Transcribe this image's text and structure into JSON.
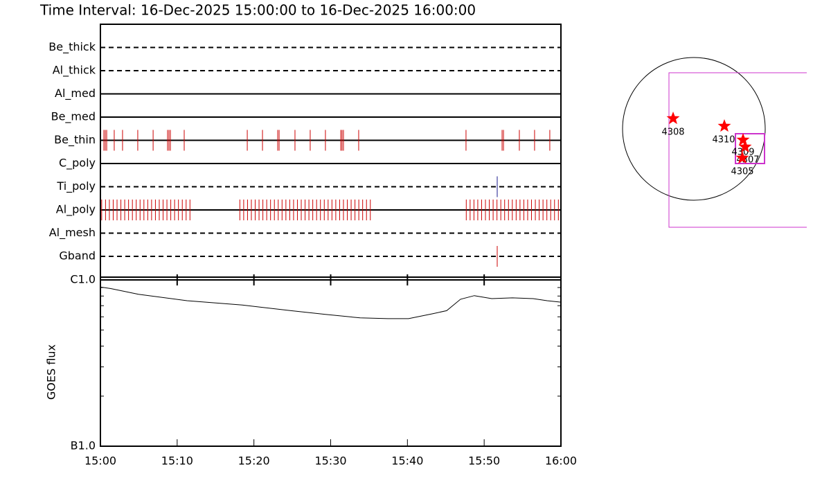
{
  "chart_data": [
    {
      "type": "timeline",
      "title": "Time Interval: 16-Dec-2025 15:00:00 to 16-Dec-2025 16:00:00",
      "xlim": [
        "15:00",
        "16:00"
      ],
      "rows": [
        {
          "name": "Be_thick",
          "style": "dashed",
          "color": "#cc0000",
          "events": []
        },
        {
          "name": "Al_thick",
          "style": "dashed",
          "color": "#cc0000",
          "events": []
        },
        {
          "name": "Al_med",
          "style": "solid",
          "color": "#cc0000",
          "events": []
        },
        {
          "name": "Be_med",
          "style": "solid",
          "color": "#cc0000",
          "events": []
        },
        {
          "name": "Be_thin",
          "style": "solid",
          "color": "#cc0000",
          "events": [
            "15:00:27",
            "15:00:38",
            "15:00:49",
            "15:01:48",
            "15:02:53",
            "15:04:52",
            "15:06:52",
            "15:08:45",
            "15:08:56",
            "15:09:07",
            "15:10:55",
            "15:19:08",
            "15:21:07",
            "15:23:06",
            "15:23:17",
            "15:25:21",
            "15:27:20",
            "15:29:19",
            "15:31:19",
            "15:31:29",
            "15:31:40",
            "15:33:39",
            "15:47:38",
            "15:52:20",
            "15:52:31",
            "15:54:35",
            "15:56:34",
            "15:58:33"
          ]
        },
        {
          "name": "C_poly",
          "style": "solid",
          "color": "#cc0000",
          "events": []
        },
        {
          "name": "Ti_poly",
          "style": "dashed",
          "color": "#1a1a8c",
          "events": [
            "15:51:42"
          ]
        },
        {
          "name": "Al_poly",
          "style": "solid",
          "color": "#cc0000",
          "events": [
            "15:00:10",
            "15:00:40",
            "15:01:10",
            "15:01:40",
            "15:02:10",
            "15:02:40",
            "15:03:10",
            "15:03:40",
            "15:04:10",
            "15:04:40",
            "15:05:10",
            "15:05:40",
            "15:06:10",
            "15:06:40",
            "15:07:10",
            "15:07:40",
            "15:08:10",
            "15:08:40",
            "15:09:10",
            "15:09:40",
            "15:10:10",
            "15:10:40",
            "15:11:10",
            "15:11:40",
            "15:18:10",
            "15:18:40",
            "15:19:10",
            "15:19:40",
            "15:20:10",
            "15:20:40",
            "15:21:10",
            "15:21:40",
            "15:22:10",
            "15:22:40",
            "15:23:10",
            "15:23:40",
            "15:24:10",
            "15:24:40",
            "15:25:10",
            "15:25:40",
            "15:26:10",
            "15:26:40",
            "15:27:10",
            "15:27:40",
            "15:28:10",
            "15:28:40",
            "15:29:10",
            "15:29:40",
            "15:30:10",
            "15:30:40",
            "15:31:10",
            "15:31:40",
            "15:32:10",
            "15:32:40",
            "15:33:10",
            "15:33:40",
            "15:34:10",
            "15:34:40",
            "15:35:10",
            "15:47:40",
            "15:48:10",
            "15:48:40",
            "15:49:10",
            "15:49:40",
            "15:50:10",
            "15:50:40",
            "15:51:10",
            "15:51:40",
            "15:52:10",
            "15:52:40",
            "15:53:10",
            "15:53:40",
            "15:54:10",
            "15:54:40",
            "15:55:10",
            "15:55:40",
            "15:56:10",
            "15:56:40",
            "15:57:10",
            "15:57:40",
            "15:58:10",
            "15:58:40",
            "15:59:10",
            "15:59:40"
          ]
        },
        {
          "name": "Al_mesh",
          "style": "dashed",
          "color": "#cc0000",
          "events": []
        },
        {
          "name": "Gband",
          "style": "dashed",
          "color": "#cc0000",
          "events": [
            "15:51:42"
          ]
        }
      ]
    },
    {
      "type": "line",
      "y_label": "GOES flux",
      "log_y": true,
      "color": "#000000",
      "xlim": [
        "15:00",
        "16:00"
      ],
      "xticks": [
        "15:00",
        "15:10",
        "15:20",
        "15:30",
        "15:40",
        "15:50",
        "16:00"
      ],
      "ylim": [
        1e-07,
        1e-06
      ],
      "yticks": [
        {
          "value": 1e-07,
          "label": "B1.0"
        },
        {
          "value": 1e-06,
          "label": "C1.0"
        }
      ],
      "yminor": [
        2e-07,
        3e-07,
        4e-07,
        5e-07,
        6e-07,
        7e-07,
        8e-07,
        9e-07
      ],
      "x": [
        "15:00:00",
        "15:01:21",
        "15:04:58",
        "15:11:17",
        "15:18:30",
        "15:24:49",
        "15:29:19",
        "15:33:50",
        "15:37:27",
        "15:40:09",
        "15:43:19",
        "15:45:07",
        "15:46:55",
        "15:48:43",
        "15:50:59",
        "15:53:41",
        "15:56:23",
        "15:58:12",
        "16:00:00"
      ],
      "values": [
        9.06e-07,
        8.87e-07,
        8.2e-07,
        7.5e-07,
        7.06e-07,
        6.53e-07,
        6.21e-07,
        5.91e-07,
        5.85e-07,
        5.85e-07,
        6.27e-07,
        6.53e-07,
        7.65e-07,
        8.04e-07,
        7.72e-07,
        7.8e-07,
        7.72e-07,
        7.5e-07,
        7.35e-07
      ]
    }
  ],
  "map": {
    "regions": [
      {
        "label": "4308"
      },
      {
        "label": "4310"
      },
      {
        "label": "4309"
      },
      {
        "label": "4307"
      },
      {
        "label": "4305"
      }
    ]
  }
}
